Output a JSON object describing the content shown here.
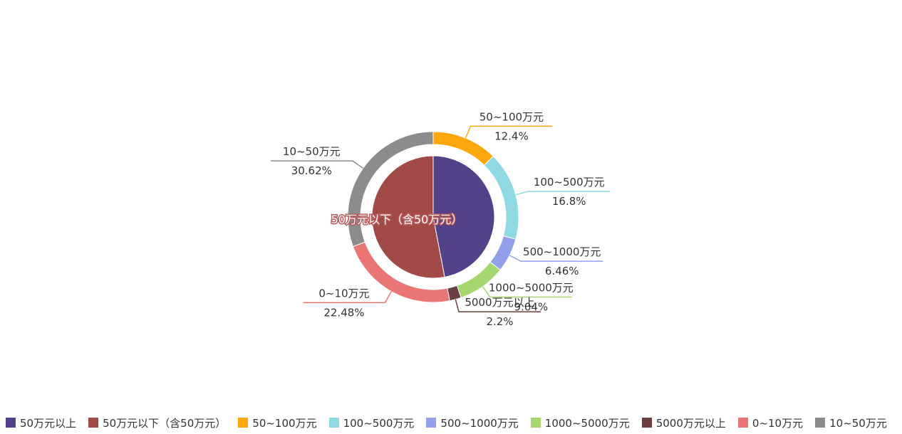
{
  "chart_data": {
    "type": "pie",
    "subtype": "nested-donut",
    "title": "",
    "inner": {
      "label": "50万元以下（含50万元）",
      "slices": [
        {
          "name": "50万元以上",
          "value": 47,
          "color": "#534289"
        },
        {
          "name": "50万元以下（含50万元）",
          "value": 53,
          "color": "#a14a47"
        }
      ]
    },
    "outer": {
      "slices": [
        {
          "name": "50~100万元",
          "value": 12.4,
          "label": "12.4%",
          "color": "#fca70c"
        },
        {
          "name": "100~500万元",
          "value": 16.8,
          "label": "16.8%",
          "color": "#8fd9e2"
        },
        {
          "name": "500~1000万元",
          "value": 6.46,
          "label": "6.46%",
          "color": "#939fe9"
        },
        {
          "name": "1000~5000万元",
          "value": 9.04,
          "label": "9.04%",
          "color": "#a5d76e"
        },
        {
          "name": "5000万元以上",
          "value": 2.2,
          "label": "2.2%",
          "color": "#6c4040"
        },
        {
          "name": "0~10万元",
          "value": 22.48,
          "label": "22.48%",
          "color": "#e97575"
        },
        {
          "name": "10~50万元",
          "value": 30.62,
          "label": "30.62%",
          "color": "#8c8c8c"
        }
      ]
    },
    "legend": {
      "position": "bottom",
      "items": [
        {
          "name": "50万元以上",
          "color": "#534289"
        },
        {
          "name": "50万元以下（含50万元）",
          "color": "#a14a47"
        },
        {
          "name": "50~100万元",
          "color": "#fca70c"
        },
        {
          "name": "100~500万元",
          "color": "#8fd9e2"
        },
        {
          "name": "500~1000万元",
          "color": "#939fe9"
        },
        {
          "name": "1000~5000万元",
          "color": "#a5d76e"
        },
        {
          "name": "5000万元以上",
          "color": "#6c4040"
        },
        {
          "name": "0~10万元",
          "color": "#e97575"
        },
        {
          "name": "10~50万元",
          "color": "#8c8c8c"
        }
      ]
    }
  }
}
